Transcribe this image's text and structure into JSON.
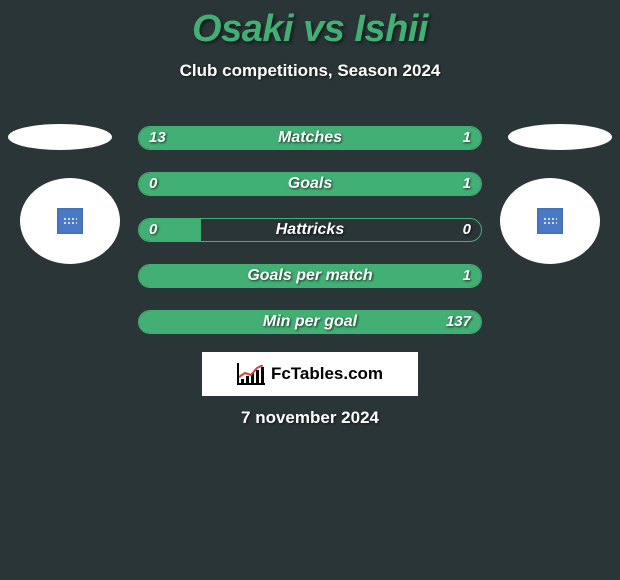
{
  "title": "Osaki vs Ishii",
  "subtitle": "Club competitions, Season 2024",
  "date": "7 november 2024",
  "logo_text": "FcTables.com",
  "colors": {
    "background": "#2a3537",
    "accent": "#42af74",
    "text": "#ffffff",
    "portrait_badge": "#4a7ac7",
    "logo_bg": "#ffffff"
  },
  "bars": [
    {
      "label": "Matches",
      "left": "13",
      "right": "1",
      "left_pct": 77,
      "right_pct": 23
    },
    {
      "label": "Goals",
      "left": "0",
      "right": "1",
      "left_pct": 18,
      "right_pct": 82
    },
    {
      "label": "Hattricks",
      "left": "0",
      "right": "0",
      "left_pct": 18,
      "right_pct": 0
    },
    {
      "label": "Goals per match",
      "left": "",
      "right": "1",
      "left_pct": 0,
      "right_pct": 100
    },
    {
      "label": "Min per goal",
      "left": "",
      "right": "137",
      "left_pct": 0,
      "right_pct": 100
    }
  ]
}
